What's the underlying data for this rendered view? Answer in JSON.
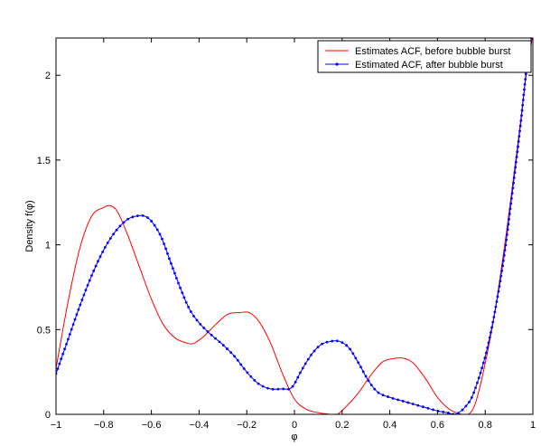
{
  "chart_data": {
    "type": "line",
    "title": "",
    "xlabel": "φ",
    "ylabel": "Density f(φ)",
    "xlim": [
      -1,
      1
    ],
    "ylim": [
      0,
      2.22
    ],
    "xticks": [
      -1,
      -0.8,
      -0.6,
      -0.4,
      -0.2,
      0,
      0.2,
      0.4,
      0.6,
      0.8,
      1
    ],
    "xtick_labels": [
      "−1",
      "−0.8",
      "−0.6",
      "−0.4",
      "−0.2",
      "0",
      "0.2",
      "0.4",
      "0.6",
      "0.8",
      "1"
    ],
    "yticks": [
      0,
      0.5,
      1,
      1.5,
      2
    ],
    "ytick_labels": [
      "0",
      "0.5",
      "1",
      "1.5",
      "2"
    ],
    "grid": false,
    "legend_position": "top-right",
    "series": [
      {
        "name": "Estimates ACF, before bubble burst",
        "color": "#ff0000",
        "marker": "none",
        "x": [
          -1,
          -0.95,
          -0.9,
          -0.85,
          -0.8,
          -0.77,
          -0.74,
          -0.7,
          -0.65,
          -0.6,
          -0.55,
          -0.5,
          -0.45,
          -0.42,
          -0.38,
          -0.33,
          -0.28,
          -0.23,
          -0.19,
          -0.15,
          -0.1,
          -0.05,
          0,
          0.05,
          0.1,
          0.15,
          0.18,
          0.22,
          0.27,
          0.32,
          0.37,
          0.42,
          0.46,
          0.5,
          0.55,
          0.6,
          0.65,
          0.7,
          0.73,
          0.76,
          0.8,
          0.84,
          0.88,
          0.91,
          0.94,
          0.97,
          0.99,
          1
        ],
        "y": [
          0.27,
          0.66,
          0.98,
          1.17,
          1.22,
          1.23,
          1.19,
          1.06,
          0.87,
          0.68,
          0.53,
          0.45,
          0.42,
          0.42,
          0.46,
          0.53,
          0.59,
          0.6,
          0.6,
          0.55,
          0.42,
          0.24,
          0.09,
          0.03,
          0.01,
          0.0,
          0.0,
          0.05,
          0.13,
          0.23,
          0.31,
          0.33,
          0.33,
          0.3,
          0.21,
          0.1,
          0.03,
          0.0,
          0.0,
          0.07,
          0.3,
          0.6,
          0.98,
          1.3,
          1.63,
          1.98,
          2.15,
          2.25
        ]
      },
      {
        "name": "Estimated ACF, after bubble burst",
        "color": "#0000ff",
        "marker": "dot",
        "x": [
          -1,
          -0.95,
          -0.9,
          -0.85,
          -0.8,
          -0.75,
          -0.7,
          -0.66,
          -0.63,
          -0.6,
          -0.56,
          -0.52,
          -0.48,
          -0.44,
          -0.4,
          -0.35,
          -0.3,
          -0.25,
          -0.2,
          -0.15,
          -0.1,
          -0.05,
          -0.02,
          0.0,
          0.03,
          0.07,
          0.11,
          0.15,
          0.19,
          0.23,
          0.27,
          0.31,
          0.35,
          0.4,
          0.45,
          0.5,
          0.55,
          0.6,
          0.64,
          0.67,
          0.69,
          0.72,
          0.75,
          0.8,
          0.84,
          0.88,
          0.92,
          0.95,
          0.98,
          1
        ],
        "y": [
          0.24,
          0.44,
          0.64,
          0.82,
          0.97,
          1.08,
          1.15,
          1.17,
          1.17,
          1.14,
          1.05,
          0.9,
          0.75,
          0.62,
          0.54,
          0.47,
          0.41,
          0.34,
          0.25,
          0.18,
          0.15,
          0.15,
          0.15,
          0.18,
          0.26,
          0.35,
          0.41,
          0.43,
          0.43,
          0.39,
          0.3,
          0.2,
          0.13,
          0.1,
          0.08,
          0.06,
          0.04,
          0.02,
          0.01,
          0.0,
          0.01,
          0.05,
          0.12,
          0.34,
          0.6,
          0.94,
          1.38,
          1.73,
          2.12,
          2.25
        ]
      }
    ]
  }
}
